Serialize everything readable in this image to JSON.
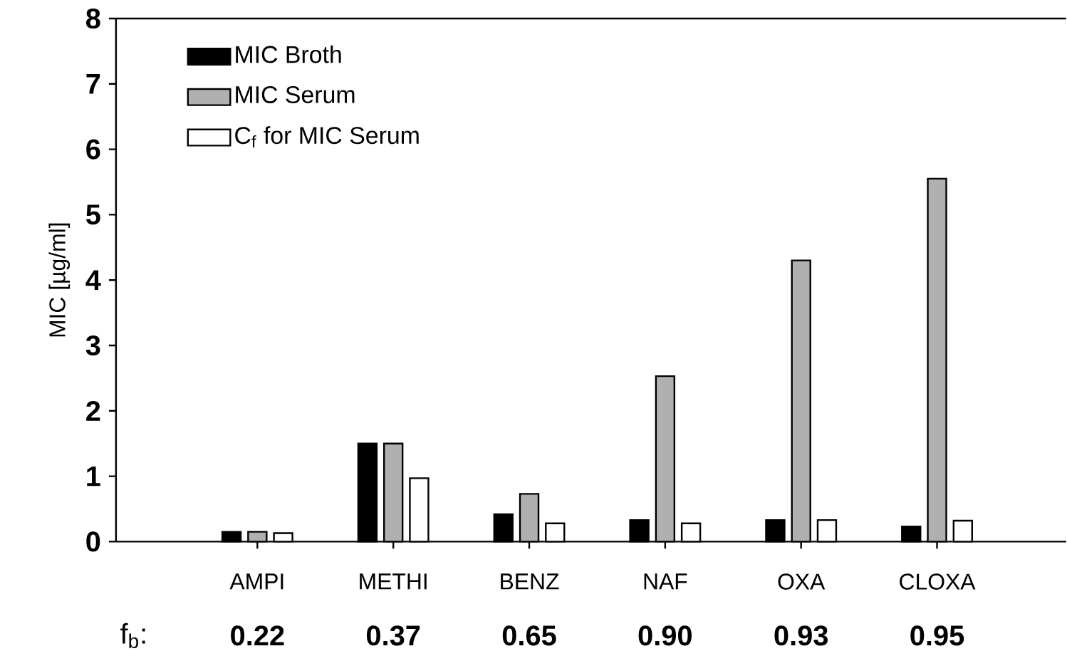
{
  "chart_data": {
    "type": "bar",
    "ylabel": "MIC [µg/ml]",
    "categories": [
      "AMPI",
      "METHI",
      "BENZ",
      "NAF",
      "OXA",
      "CLOXA"
    ],
    "series": [
      {
        "name": "MIC Broth",
        "color": "#000000",
        "values": [
          0.15,
          1.5,
          0.42,
          0.33,
          0.33,
          0.23
        ]
      },
      {
        "name": "MIC Serum",
        "color": "#b0b0b0",
        "values": [
          0.15,
          1.5,
          0.73,
          2.53,
          4.3,
          5.55
        ]
      },
      {
        "name": "C$_{f}$ for MIC Serum",
        "color": "#ffffff",
        "values": [
          0.13,
          0.97,
          0.28,
          0.28,
          0.33,
          0.32
        ]
      }
    ],
    "ylim": [
      0,
      8
    ],
    "yticks": [
      0,
      1,
      2,
      3,
      4,
      5,
      6,
      7,
      8
    ],
    "grid": false,
    "legend": "top left",
    "annotations": [
      "f$_{b}$:",
      "0.22",
      "0.37",
      "0.65",
      "0.90",
      "0.93",
      "0.95"
    ]
  }
}
